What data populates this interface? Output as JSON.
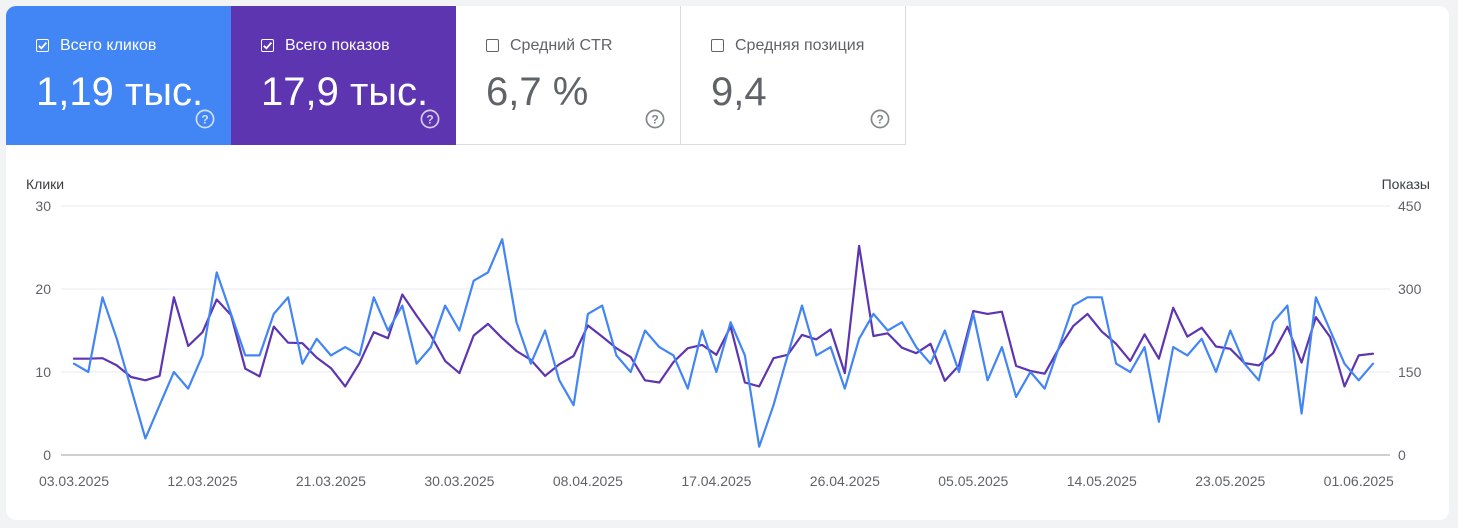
{
  "cards": [
    {
      "label": "Всего кликов",
      "value": "1,19 тыс.",
      "checked": true,
      "color": "#4285f4"
    },
    {
      "label": "Всего показов",
      "value": "17,9 тыс.",
      "checked": true,
      "color": "#5e35b1"
    },
    {
      "label": "Средний CTR",
      "value": "6,7 %",
      "checked": false
    },
    {
      "label": "Средняя позиция",
      "value": "9,4",
      "checked": false
    }
  ],
  "chart_data": {
    "type": "line",
    "left_axis": {
      "title": "Клики",
      "ylim": [
        0,
        30
      ],
      "ticks": [
        "0",
        "10",
        "20",
        "30"
      ]
    },
    "right_axis": {
      "title": "Показы",
      "ylim": [
        0,
        450
      ],
      "ticks": [
        "0",
        "150",
        "300",
        "450"
      ]
    },
    "x_tick_labels": [
      "03.03.2025",
      "12.03.2025",
      "21.03.2025",
      "30.03.2025",
      "08.04.2025",
      "17.04.2025",
      "26.04.2025",
      "05.05.2025",
      "14.05.2025",
      "23.05.2025",
      "01.06.2025"
    ],
    "x_start": "03.03.2025",
    "x_end": "02.06.2025",
    "grid": true,
    "legend": "none",
    "series": [
      {
        "axis": "left",
        "color": "#4285f4",
        "values": [
          11,
          10,
          19,
          14,
          8,
          2,
          6,
          10,
          8,
          12,
          22,
          17,
          12,
          12,
          17,
          19,
          11,
          14,
          12,
          13,
          12,
          19,
          15,
          18,
          11,
          13,
          18,
          15,
          21,
          22,
          26,
          16,
          11,
          15,
          9,
          6,
          17,
          18,
          12,
          10,
          15,
          13,
          12,
          8,
          15,
          10,
          16,
          12,
          1,
          6,
          12,
          18,
          12,
          13,
          8,
          14,
          17,
          15,
          16,
          13,
          11,
          15,
          10,
          17,
          9,
          13,
          7,
          10,
          8,
          13,
          18,
          19,
          19,
          11,
          10,
          13,
          4,
          13,
          12,
          14,
          10,
          15,
          11,
          9,
          16,
          18,
          5,
          19,
          15,
          11,
          9,
          11
        ]
      },
      {
        "axis": "right",
        "color": "#5e35b1",
        "values": [
          174,
          174,
          175,
          162,
          141,
          135,
          143,
          285,
          197,
          222,
          281,
          253,
          156,
          142,
          232,
          203,
          202,
          176,
          157,
          124,
          166,
          222,
          211,
          290,
          252,
          216,
          170,
          148,
          216,
          237,
          211,
          188,
          172,
          143,
          164,
          179,
          234,
          214,
          193,
          177,
          135,
          131,
          168,
          193,
          199,
          181,
          232,
          131,
          124,
          175,
          181,
          217,
          209,
          227,
          148,
          378,
          215,
          220,
          194,
          184,
          201,
          134,
          162,
          260,
          255,
          259,
          161,
          152,
          147,
          193,
          233,
          255,
          223,
          201,
          170,
          218,
          174,
          266,
          214,
          230,
          196,
          192,
          166,
          162,
          184,
          232,
          167,
          249,
          213,
          124,
          180,
          183
        ]
      }
    ]
  }
}
